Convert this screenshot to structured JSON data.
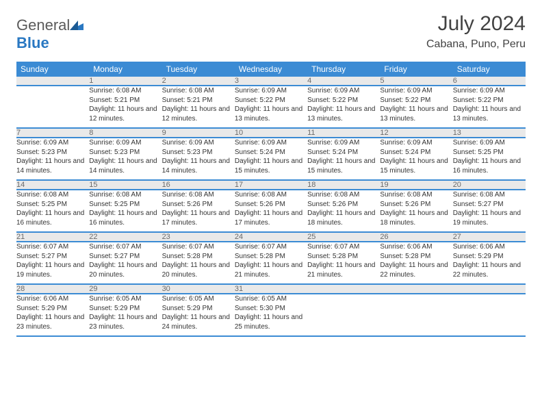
{
  "brand": {
    "name_gray": "General",
    "name_blue": "Blue"
  },
  "title": "July 2024",
  "location": "Cabana, Puno, Peru",
  "colors": {
    "header_bg": "#3b8bd4",
    "header_text": "#ffffff",
    "daynum_bg": "#e9e9e9",
    "daynum_text": "#6a6a6a",
    "cell_text": "#333333",
    "rule": "#3b8bd4",
    "page_bg": "#ffffff",
    "brand_gray": "#5a5a5a",
    "brand_blue": "#2a78c2"
  },
  "weekdays": [
    "Sunday",
    "Monday",
    "Tuesday",
    "Wednesday",
    "Thursday",
    "Friday",
    "Saturday"
  ],
  "weeks": [
    [
      null,
      {
        "n": "1",
        "sr": "Sunrise: 6:08 AM",
        "ss": "Sunset: 5:21 PM",
        "dl": "Daylight: 11 hours and 12 minutes."
      },
      {
        "n": "2",
        "sr": "Sunrise: 6:08 AM",
        "ss": "Sunset: 5:21 PM",
        "dl": "Daylight: 11 hours and 12 minutes."
      },
      {
        "n": "3",
        "sr": "Sunrise: 6:09 AM",
        "ss": "Sunset: 5:22 PM",
        "dl": "Daylight: 11 hours and 13 minutes."
      },
      {
        "n": "4",
        "sr": "Sunrise: 6:09 AM",
        "ss": "Sunset: 5:22 PM",
        "dl": "Daylight: 11 hours and 13 minutes."
      },
      {
        "n": "5",
        "sr": "Sunrise: 6:09 AM",
        "ss": "Sunset: 5:22 PM",
        "dl": "Daylight: 11 hours and 13 minutes."
      },
      {
        "n": "6",
        "sr": "Sunrise: 6:09 AM",
        "ss": "Sunset: 5:22 PM",
        "dl": "Daylight: 11 hours and 13 minutes."
      }
    ],
    [
      {
        "n": "7",
        "sr": "Sunrise: 6:09 AM",
        "ss": "Sunset: 5:23 PM",
        "dl": "Daylight: 11 hours and 14 minutes."
      },
      {
        "n": "8",
        "sr": "Sunrise: 6:09 AM",
        "ss": "Sunset: 5:23 PM",
        "dl": "Daylight: 11 hours and 14 minutes."
      },
      {
        "n": "9",
        "sr": "Sunrise: 6:09 AM",
        "ss": "Sunset: 5:23 PM",
        "dl": "Daylight: 11 hours and 14 minutes."
      },
      {
        "n": "10",
        "sr": "Sunrise: 6:09 AM",
        "ss": "Sunset: 5:24 PM",
        "dl": "Daylight: 11 hours and 15 minutes."
      },
      {
        "n": "11",
        "sr": "Sunrise: 6:09 AM",
        "ss": "Sunset: 5:24 PM",
        "dl": "Daylight: 11 hours and 15 minutes."
      },
      {
        "n": "12",
        "sr": "Sunrise: 6:09 AM",
        "ss": "Sunset: 5:24 PM",
        "dl": "Daylight: 11 hours and 15 minutes."
      },
      {
        "n": "13",
        "sr": "Sunrise: 6:09 AM",
        "ss": "Sunset: 5:25 PM",
        "dl": "Daylight: 11 hours and 16 minutes."
      }
    ],
    [
      {
        "n": "14",
        "sr": "Sunrise: 6:08 AM",
        "ss": "Sunset: 5:25 PM",
        "dl": "Daylight: 11 hours and 16 minutes."
      },
      {
        "n": "15",
        "sr": "Sunrise: 6:08 AM",
        "ss": "Sunset: 5:25 PM",
        "dl": "Daylight: 11 hours and 16 minutes."
      },
      {
        "n": "16",
        "sr": "Sunrise: 6:08 AM",
        "ss": "Sunset: 5:26 PM",
        "dl": "Daylight: 11 hours and 17 minutes."
      },
      {
        "n": "17",
        "sr": "Sunrise: 6:08 AM",
        "ss": "Sunset: 5:26 PM",
        "dl": "Daylight: 11 hours and 17 minutes."
      },
      {
        "n": "18",
        "sr": "Sunrise: 6:08 AM",
        "ss": "Sunset: 5:26 PM",
        "dl": "Daylight: 11 hours and 18 minutes."
      },
      {
        "n": "19",
        "sr": "Sunrise: 6:08 AM",
        "ss": "Sunset: 5:26 PM",
        "dl": "Daylight: 11 hours and 18 minutes."
      },
      {
        "n": "20",
        "sr": "Sunrise: 6:08 AM",
        "ss": "Sunset: 5:27 PM",
        "dl": "Daylight: 11 hours and 19 minutes."
      }
    ],
    [
      {
        "n": "21",
        "sr": "Sunrise: 6:07 AM",
        "ss": "Sunset: 5:27 PM",
        "dl": "Daylight: 11 hours and 19 minutes."
      },
      {
        "n": "22",
        "sr": "Sunrise: 6:07 AM",
        "ss": "Sunset: 5:27 PM",
        "dl": "Daylight: 11 hours and 20 minutes."
      },
      {
        "n": "23",
        "sr": "Sunrise: 6:07 AM",
        "ss": "Sunset: 5:28 PM",
        "dl": "Daylight: 11 hours and 20 minutes."
      },
      {
        "n": "24",
        "sr": "Sunrise: 6:07 AM",
        "ss": "Sunset: 5:28 PM",
        "dl": "Daylight: 11 hours and 21 minutes."
      },
      {
        "n": "25",
        "sr": "Sunrise: 6:07 AM",
        "ss": "Sunset: 5:28 PM",
        "dl": "Daylight: 11 hours and 21 minutes."
      },
      {
        "n": "26",
        "sr": "Sunrise: 6:06 AM",
        "ss": "Sunset: 5:28 PM",
        "dl": "Daylight: 11 hours and 22 minutes."
      },
      {
        "n": "27",
        "sr": "Sunrise: 6:06 AM",
        "ss": "Sunset: 5:29 PM",
        "dl": "Daylight: 11 hours and 22 minutes."
      }
    ],
    [
      {
        "n": "28",
        "sr": "Sunrise: 6:06 AM",
        "ss": "Sunset: 5:29 PM",
        "dl": "Daylight: 11 hours and 23 minutes."
      },
      {
        "n": "29",
        "sr": "Sunrise: 6:05 AM",
        "ss": "Sunset: 5:29 PM",
        "dl": "Daylight: 11 hours and 23 minutes."
      },
      {
        "n": "30",
        "sr": "Sunrise: 6:05 AM",
        "ss": "Sunset: 5:29 PM",
        "dl": "Daylight: 11 hours and 24 minutes."
      },
      {
        "n": "31",
        "sr": "Sunrise: 6:05 AM",
        "ss": "Sunset: 5:30 PM",
        "dl": "Daylight: 11 hours and 25 minutes."
      },
      null,
      null,
      null
    ]
  ]
}
